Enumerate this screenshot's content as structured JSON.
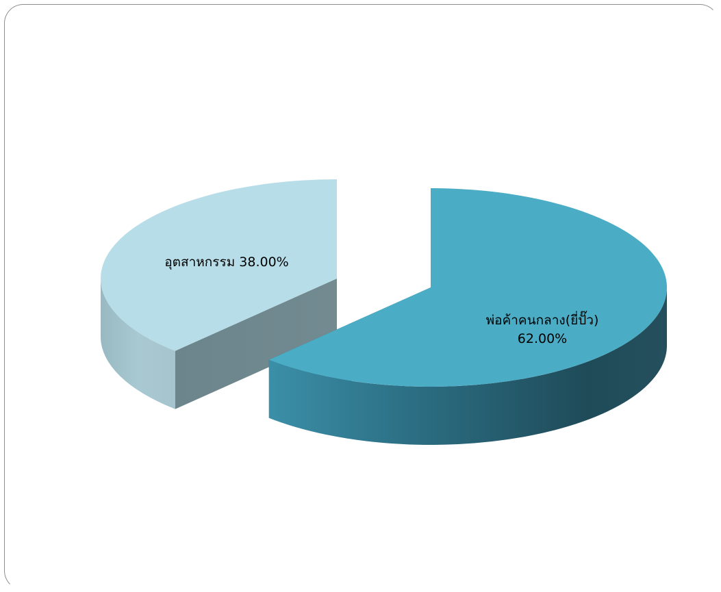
{
  "chart_data": {
    "type": "pie",
    "style": "3d-exploded",
    "slices": [
      {
        "label": "พ่อค้าคนกลาง(ยี่ปั๊ว)",
        "value": 62.0,
        "value_text": "62.00%",
        "color": "#4bacc6"
      },
      {
        "label": "อุตสาหกรรม",
        "value": 38.0,
        "value_text": "38.00%",
        "color": "#b7dde8"
      }
    ],
    "legend": "none"
  }
}
